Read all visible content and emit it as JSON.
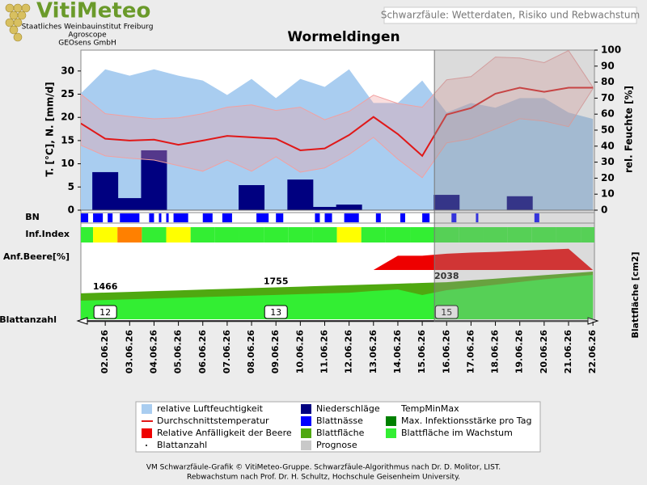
{
  "header": {
    "brand": "VitiMeteo",
    "lines": [
      "Staatliches Weinbauinstitut Freiburg",
      "Agroscope",
      "GEOsens GmbH"
    ],
    "box": "Schwarzfäule: Wetterdaten, Risiko und Rebwachstum"
  },
  "chart_data": {
    "type": "combo",
    "title": "Wormeldingen",
    "categories": [
      null,
      "02.06.26",
      "03.06.26",
      "04.06.26",
      "05.06.26",
      "06.06.26",
      "07.06.26",
      "08.06.26",
      "09.06.26",
      "10.06.26",
      "11.06.26",
      "12.06.26",
      "13.06.26",
      "14.06.26",
      "15.06.26",
      "16.06.26",
      "17.06.26",
      "18.06.26",
      "19.06.26",
      "20.06.26",
      "21.06.26",
      "22.06.26"
    ],
    "ylabel": "T. [°C], N. [mm/d]",
    "y2label": "rel. Feuchte [%]",
    "ylim": [
      0,
      34.5
    ],
    "yticks": [
      0,
      5,
      10,
      15,
      20,
      25,
      30
    ],
    "y2lim": [
      0,
      100
    ],
    "y2ticks": [
      0,
      10,
      20,
      30,
      40,
      50,
      60,
      70,
      80,
      90,
      100
    ],
    "series": [
      {
        "name": "relative Luftfeuchtigkeit",
        "color": "#a9cdf0",
        "axis": "y2",
        "kind": "area",
        "values": [
          73,
          88,
          84,
          88,
          84,
          81,
          72,
          82,
          70,
          82,
          77,
          88,
          67,
          67,
          81,
          61,
          67,
          64,
          70,
          70,
          61,
          57
        ]
      },
      {
        "name": "Niederschläge",
        "color": "#000080",
        "kind": "bar",
        "values": [
          0,
          8.2,
          2.6,
          12.9,
          0,
          0,
          0,
          5.4,
          0,
          6.6,
          0.7,
          1.2,
          0,
          0,
          0,
          3.3,
          0,
          0,
          3,
          0,
          0,
          0
        ]
      },
      {
        "name": "TempMinMax",
        "color": "#f2a0a0",
        "kind": "band",
        "low": [
          14,
          11.7,
          11.2,
          10.8,
          9.6,
          8.4,
          10.8,
          8.4,
          11.5,
          8.2,
          9.1,
          12,
          15.7,
          11,
          7,
          14.5,
          15.4,
          17.5,
          19.7,
          19.2,
          18,
          26.2
        ],
        "high": [
          25,
          20.8,
          20.2,
          19.7,
          19.9,
          20.8,
          22.2,
          22.7,
          21.5,
          22.2,
          19.5,
          21.3,
          24.8,
          23,
          22.2,
          28.1,
          28.8,
          33,
          32.8,
          31.8,
          34.4,
          26.5
        ]
      },
      {
        "name": "Durchschnittstemperatur",
        "color": "#e01818",
        "kind": "line",
        "values": [
          18.7,
          15.4,
          15,
          15.2,
          14.1,
          15,
          16,
          15.7,
          15.4,
          12.9,
          13.3,
          16.2,
          20.1,
          16.4,
          11.7,
          20.6,
          22,
          25.1,
          26.4,
          25.5,
          26.4,
          26.4
        ]
      }
    ],
    "bn": {
      "label": "BN",
      "name": "Blattnässe",
      "color": "#0000ff",
      "intervals": [
        [
          0,
          0.3
        ],
        [
          0.5,
          0.9
        ],
        [
          1.1,
          1.3
        ],
        [
          1.6,
          2.4
        ],
        [
          2.8,
          3.0
        ],
        [
          3.2,
          3.3
        ],
        [
          3.5,
          3.6
        ],
        [
          3.8,
          4.4
        ],
        [
          5.0,
          5.4
        ],
        [
          5.8,
          6.2
        ],
        [
          7.2,
          7.7
        ],
        [
          8.0,
          8.3
        ],
        [
          9.6,
          9.8
        ],
        [
          10.0,
          10.3
        ],
        [
          10.8,
          11.4
        ],
        [
          12.1,
          12.3
        ],
        [
          13.1,
          13.3
        ],
        [
          14.0,
          14.3
        ],
        [
          15.2,
          15.4
        ],
        [
          16.2,
          16.3
        ],
        [
          18.6,
          18.8
        ]
      ]
    },
    "infection": {
      "label": "Inf.Index",
      "name": "Max. Infektionsstärke pro Tag",
      "color": "#008000",
      "level_colors": [
        "#33ee33",
        "#ffff00",
        "#ff8000"
      ],
      "values": [
        0,
        1,
        2,
        0,
        1,
        0,
        0,
        0,
        0,
        0,
        0,
        1,
        0,
        0,
        0,
        0,
        0,
        0,
        0,
        0,
        0,
        0
      ]
    },
    "berry": {
      "label": "Anf.Beere[%]",
      "name": "Relative Anfälligkeit der Beere",
      "color": "#ee0000",
      "ylim": [
        0,
        100
      ],
      "values": [
        null,
        null,
        null,
        null,
        null,
        null,
        null,
        null,
        null,
        null,
        null,
        null,
        0,
        55,
        55,
        63,
        67,
        70,
        74,
        78,
        82,
        0
      ]
    },
    "leaf": {
      "label": "Blattanzahl",
      "y_label": "Blattfläche [cm2]",
      "ylim": [
        0,
        2665
      ],
      "area": {
        "name": "Blattfläche",
        "color": "#4fa810",
        "values": [
          1425,
          1466,
          1507,
          1548,
          1590,
          1631,
          1672,
          1714,
          1755,
          1795,
          1836,
          1876,
          1917,
          1957,
          1998,
          2038,
          2135,
          2232,
          2329,
          2426,
          2523,
          2620
        ]
      },
      "growing": {
        "name": "Blattfläche im Wachstum",
        "color": "#33ee33",
        "values": [
          1020,
          1060,
          1100,
          1140,
          1180,
          1220,
          1260,
          1300,
          1340,
          1380,
          1420,
          1460,
          1560,
          1640,
          1330,
          1600,
          1750,
          1900,
          2050,
          2200,
          2320,
          2440
        ]
      },
      "count": {
        "name": "Blattanzahl",
        "values": [
          null,
          12,
          null,
          null,
          null,
          null,
          null,
          null,
          13,
          null,
          null,
          null,
          null,
          null,
          null,
          15,
          null,
          null,
          null,
          null,
          null,
          null
        ]
      }
    },
    "forecast": {
      "name": "Prognose",
      "color": "#c8c8c8"
    }
  },
  "footer": [
    "VM Schwarzfäule-Grafik © VitiMeteo-Gruppe. Schwarzfäule-Algorithmus nach Dr. D. Molitor, LIST.",
    "Rebwachstum nach Prof. Dr. H. Schultz, Hochschule Geisenheim University."
  ]
}
